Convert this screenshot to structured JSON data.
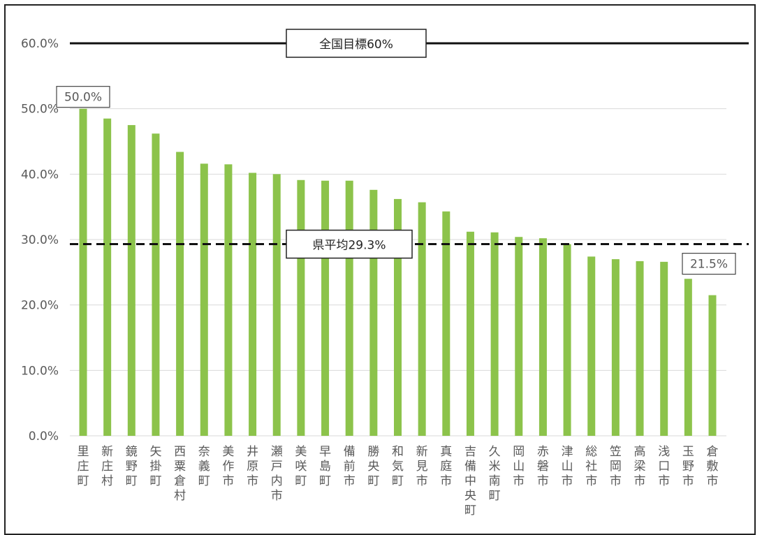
{
  "chart_data": {
    "type": "bar",
    "categories": [
      "里庄町",
      "新庄村",
      "鏡野町",
      "矢掛町",
      "西粟倉村",
      "奈義町",
      "美作市",
      "井原市",
      "瀬戸内市",
      "美咲町",
      "早島町",
      "備前市",
      "勝央町",
      "和気町",
      "新見市",
      "真庭市",
      "吉備中央町",
      "久米南町",
      "岡山市",
      "赤磐市",
      "津山市",
      "総社市",
      "笠岡市",
      "高梁市",
      "浅口市",
      "玉野市",
      "倉敷市"
    ],
    "values": [
      50.0,
      48.5,
      47.5,
      46.2,
      43.4,
      41.6,
      41.5,
      40.2,
      40.0,
      39.1,
      39.0,
      39.0,
      37.6,
      36.2,
      35.7,
      34.3,
      31.2,
      31.1,
      30.4,
      30.2,
      29.3,
      27.4,
      27.0,
      26.7,
      26.6,
      24.0,
      21.5
    ],
    "ylim": [
      0,
      60
    ],
    "yticks": [
      "0.0%",
      "10.0%",
      "20.0%",
      "30.0%",
      "40.0%",
      "50.0%",
      "60.0%"
    ],
    "grid": true,
    "bar_color": "#8cc34b",
    "reference_lines": [
      {
        "label": "全国目標60%",
        "value": 60,
        "style": "solid"
      },
      {
        "label": "県平均29.3%",
        "value": 29.3,
        "style": "dashed"
      }
    ],
    "data_labels": [
      {
        "category": "里庄町",
        "text": "50.0%"
      },
      {
        "category": "倉敷市",
        "text": "21.5%"
      }
    ]
  }
}
